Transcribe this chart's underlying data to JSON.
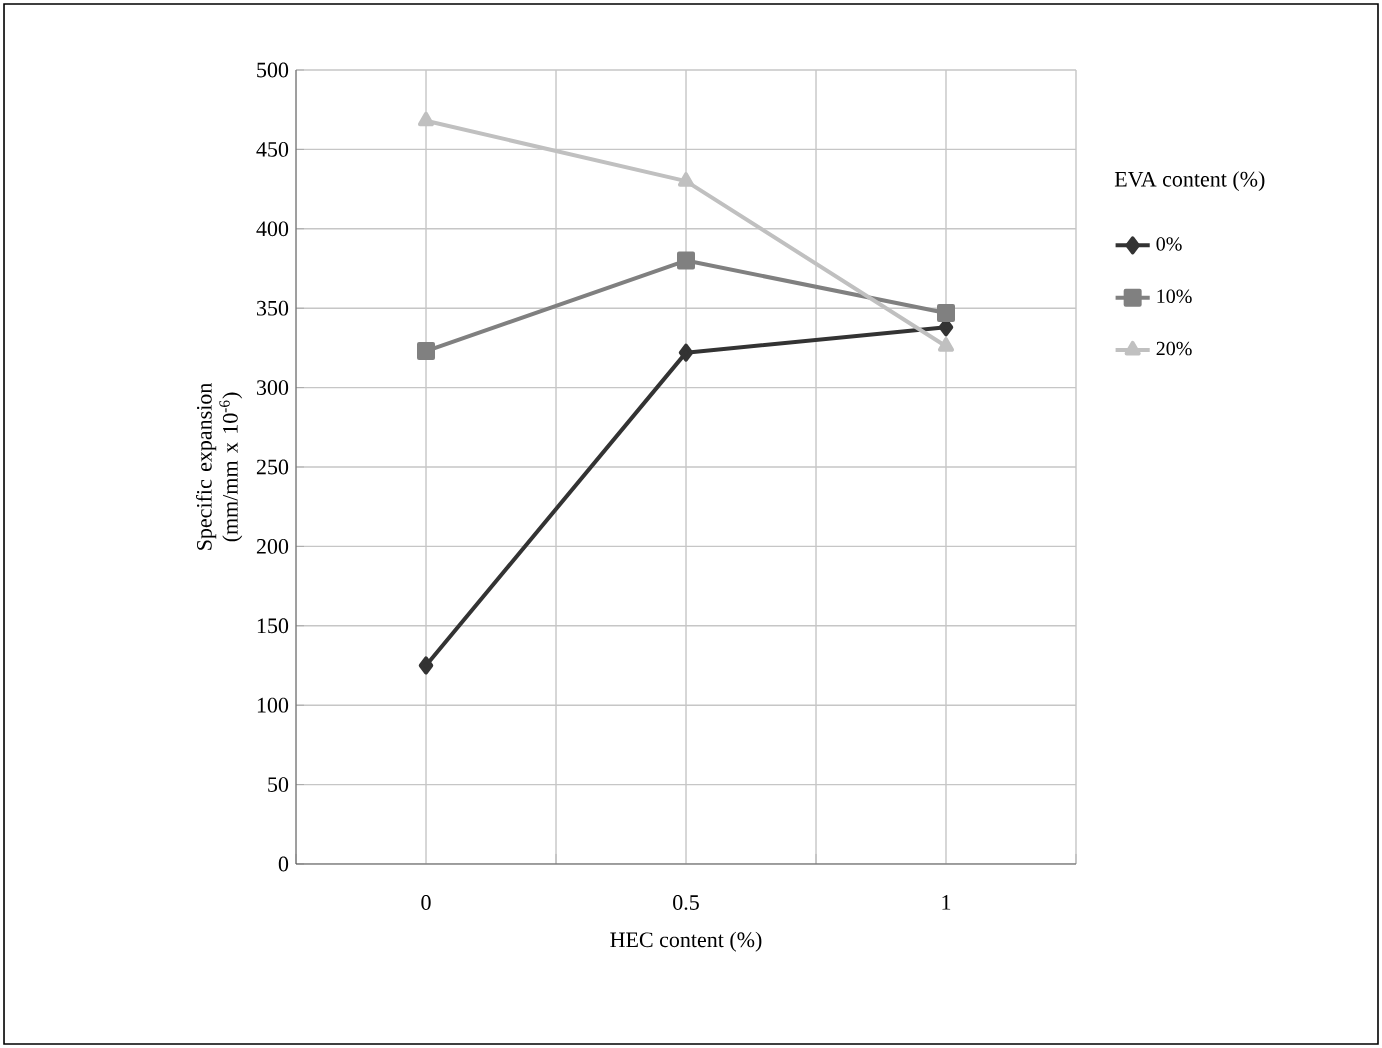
{
  "chart_data": {
    "type": "line",
    "xlabel": "HEC content (%)",
    "ylabel": "Specific expansion (mm/mm x 10$^{-6}$)",
    "legend_title": "EVA content (%)",
    "categories": [
      "0",
      "0.5",
      "1"
    ],
    "series": [
      {
        "name": "0%",
        "color": "#333333",
        "marker": "diamond",
        "values": [
          125,
          322,
          338
        ]
      },
      {
        "name": "10%",
        "color": "#808080",
        "marker": "square",
        "values": [
          323,
          380,
          347
        ]
      },
      {
        "name": "20%",
        "color": "#c0c0c0",
        "marker": "triangle",
        "values": [
          468,
          430,
          326
        ]
      }
    ],
    "ylim": [
      0,
      500
    ],
    "yticks": [
      0,
      50,
      100,
      150,
      200,
      250,
      300,
      350,
      400,
      450,
      500
    ],
    "grid": true,
    "legend": "right",
    "line_style": "solid"
  }
}
